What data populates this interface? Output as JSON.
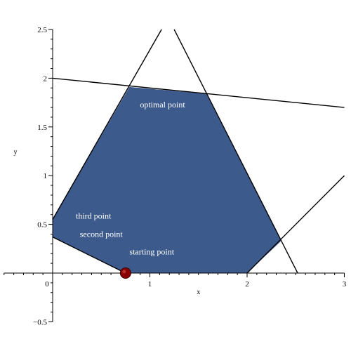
{
  "chart_data": {
    "type": "area",
    "title": "",
    "xlabel": "x",
    "ylabel": "y",
    "xlim": [
      -0.5,
      3
    ],
    "ylim": [
      -0.5,
      2.5
    ],
    "grid": false,
    "x_ticks": [
      {
        "value": 0,
        "label": "0"
      },
      {
        "value": 1,
        "label": "1"
      },
      {
        "value": 2,
        "label": "2"
      },
      {
        "value": 3,
        "label": "3"
      }
    ],
    "y_ticks": [
      {
        "value": -0.5,
        "label": "−0.5"
      },
      {
        "value": 0.5,
        "label": "0.5"
      },
      {
        "value": 1,
        "label": "1"
      },
      {
        "value": 1.5,
        "label": "1.5"
      },
      {
        "value": 2,
        "label": "2"
      },
      {
        "value": 2.5,
        "label": "2.5"
      }
    ],
    "feasible_region": {
      "color": "#3c5a8c",
      "vertices": [
        [
          0,
          0.37
        ],
        [
          0.75,
          0
        ],
        [
          2,
          0
        ],
        [
          2.35,
          0.33
        ],
        [
          1.58,
          1.84
        ],
        [
          0.79,
          1.91
        ],
        [
          0,
          0.55
        ]
      ]
    },
    "constraint_lines": [
      {
        "from": [
          0,
          2
        ],
        "to": [
          3,
          1.7
        ]
      },
      {
        "from": [
          0,
          0.55
        ],
        "to": [
          1.12,
          2.5
        ]
      },
      {
        "from": [
          1.25,
          2.5
        ],
        "to": [
          2.52,
          0
        ]
      },
      {
        "from": [
          2,
          0
        ],
        "to": [
          3,
          1
        ]
      },
      {
        "from": [
          0,
          0.37
        ],
        "to": [
          0.75,
          0
        ]
      }
    ],
    "line_color": "#000000",
    "marker": {
      "x": 0.75,
      "y": 0,
      "color": "#8b0000"
    },
    "annotations": [
      {
        "text": "optimal point",
        "x": 1.13,
        "y": 1.7
      },
      {
        "text": "third point",
        "x": 0.42,
        "y": 0.56
      },
      {
        "text": "second point",
        "x": 0.5,
        "y": 0.37
      },
      {
        "text": "starting point",
        "x": 1.02,
        "y": 0.19
      }
    ]
  }
}
